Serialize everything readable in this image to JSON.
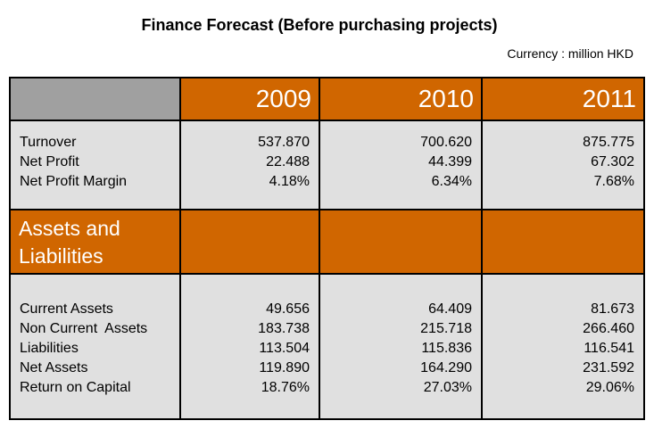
{
  "title": "Finance Forecast (Before purchasing projects)",
  "currency": "Currency : million HKD",
  "years": [
    "2009",
    "2010",
    "2011"
  ],
  "section1": {
    "labels": [
      "Turnover",
      "Net Profit",
      "Net Profit Margin"
    ],
    "values": [
      [
        "537.870",
        "22.488",
        "4.18%"
      ],
      [
        "700.620",
        "44.399",
        "6.34%"
      ],
      [
        "875.775",
        "67.302",
        "7.68%"
      ]
    ]
  },
  "section_header": {
    "line1": "Assets and",
    "line2": "Liabilities"
  },
  "section2": {
    "labels": [
      "Current Assets",
      "Non Current  Assets",
      "Liabilities",
      "Net Assets",
      "Return on Capital"
    ],
    "values": [
      [
        "49.656",
        "183.738",
        "113.504",
        "119.890",
        "18.76%"
      ],
      [
        "64.409",
        "215.718",
        "115.836",
        "164.290",
        "27.03%"
      ],
      [
        "81.673",
        "266.460",
        "116.541",
        "231.592",
        "29.06%"
      ]
    ]
  },
  "colors": {
    "header_orange": "#d06600",
    "header_gray": "#a0a0a0",
    "body_gray": "#e0e0e0"
  }
}
